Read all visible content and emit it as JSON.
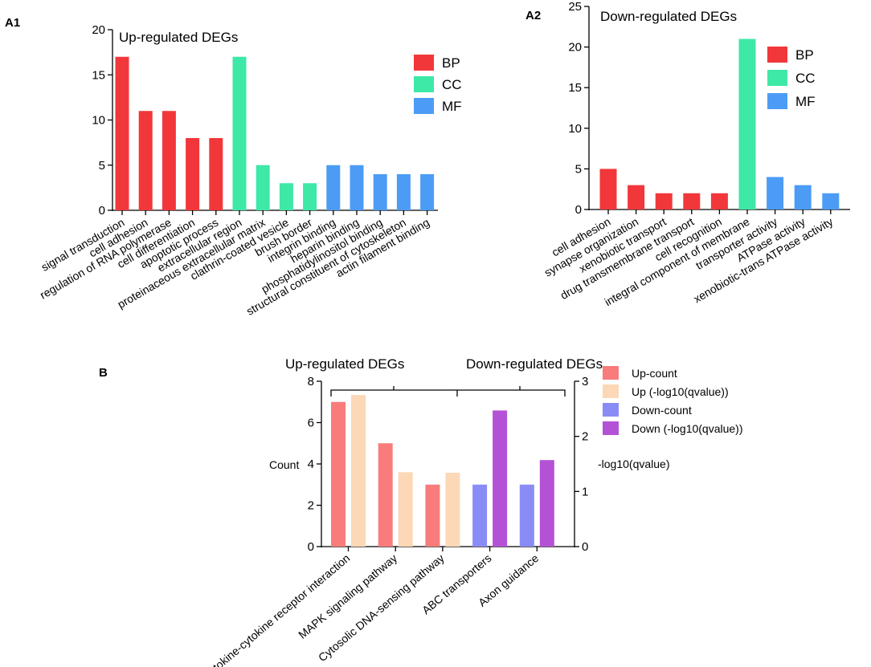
{
  "chart_data": [
    {
      "id": "A1",
      "panel_label": "A1",
      "type": "bar",
      "title": "Up-regulated DEGs",
      "xlabel": "",
      "ylabel": "",
      "ylim": [
        0,
        20
      ],
      "yticks": [
        0,
        5,
        10,
        15,
        20
      ],
      "categories": [
        "signal transduction",
        "cell adhesion",
        "regulation of  RNA polymerase",
        "cell differentiation",
        "apoptotic process",
        "extracellular region",
        "proteinaceous extracellular matrix",
        "clathrin-coated vesicle",
        "brush border",
        "integrin binding",
        "heparin binding",
        "phosphatidylinositol binding",
        "structural constituent of cytoskeleton",
        "actin filament binding"
      ],
      "values": [
        17,
        11,
        11,
        8,
        8,
        17,
        5,
        3,
        3,
        5,
        5,
        4,
        4,
        4
      ],
      "groups": [
        "BP",
        "BP",
        "BP",
        "BP",
        "BP",
        "CC",
        "CC",
        "CC",
        "CC",
        "MF",
        "MF",
        "MF",
        "MF",
        "MF"
      ],
      "legend": [
        {
          "name": "BP",
          "color": "#f2373a"
        },
        {
          "name": "CC",
          "color": "#3ee8a6"
        },
        {
          "name": "MF",
          "color": "#4c9cf5"
        }
      ],
      "legend_position": "top-right"
    },
    {
      "id": "A2",
      "panel_label": "A2",
      "type": "bar",
      "title": "Down-regulated DEGs",
      "xlabel": "",
      "ylabel": "",
      "ylim": [
        0,
        25
      ],
      "yticks": [
        0,
        5,
        10,
        15,
        20,
        25
      ],
      "categories": [
        "cell adhesion",
        "synapse organization",
        "xenobiotic transport",
        "drug transmembrane transport",
        "cell recognition",
        "integral component of membrane",
        "transporter activity",
        "ATPase activity",
        "xenobiotic-trans ATPase activity"
      ],
      "values": [
        5,
        3,
        2,
        2,
        2,
        21,
        4,
        3,
        2
      ],
      "groups": [
        "BP",
        "BP",
        "BP",
        "BP",
        "BP",
        "CC",
        "MF",
        "MF",
        "MF"
      ],
      "legend": [
        {
          "name": "BP",
          "color": "#f2373a"
        },
        {
          "name": "CC",
          "color": "#3ee8a6"
        },
        {
          "name": "MF",
          "color": "#4c9cf5"
        }
      ],
      "legend_position": "top-right"
    },
    {
      "id": "B",
      "panel_label": "B",
      "type": "bar",
      "title_left": "Up-regulated DEGs",
      "title_right": "Down-regulated DEGs",
      "ylabel": "Count",
      "ylabel_right": "-log10(qvalue)",
      "ylim": [
        0,
        8
      ],
      "yticks": [
        0,
        2,
        4,
        6,
        8
      ],
      "ylim_right": [
        0,
        3
      ],
      "yticks_right": [
        0,
        1,
        2,
        3
      ],
      "categories": [
        "Cytokine-cytokine receptor interaction",
        "MAPK signaling pathway",
        "Cytosolic DNA-sensing pathway",
        "ABC transporters",
        "Axon guidance"
      ],
      "series": [
        {
          "name": "Up-count",
          "axis": "left",
          "color": "#f87c7c",
          "values": [
            7,
            5,
            3,
            null,
            null
          ]
        },
        {
          "name": "Up (-log10(qvalue))",
          "axis": "right",
          "color": "#fcd8b6",
          "values": [
            2.75,
            1.35,
            1.34,
            null,
            null
          ]
        },
        {
          "name": "Down-count",
          "axis": "left",
          "color": "#8a8cf5",
          "values": [
            null,
            null,
            null,
            3,
            3
          ]
        },
        {
          "name": "Down (-log10(qvalue))",
          "axis": "right",
          "color": "#b452d6",
          "values": [
            null,
            null,
            null,
            2.47,
            1.57
          ]
        }
      ],
      "legend_position": "right"
    }
  ]
}
